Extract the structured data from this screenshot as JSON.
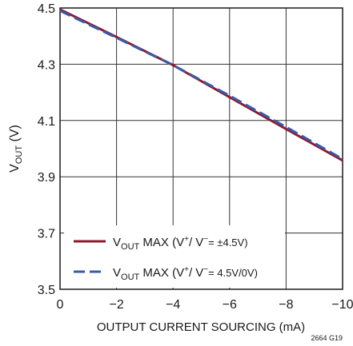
{
  "chart_data": {
    "type": "line",
    "xlabel": "OUTPUT CURRENT SOURCING (mA)",
    "ylabel_main": "V",
    "ylabel_sub": "OUT",
    "ylabel_unit": " (V)",
    "xlim": [
      0,
      -10
    ],
    "ylim": [
      3.5,
      4.5
    ],
    "x_ticks": [
      0,
      -2,
      -4,
      -6,
      -8,
      -10
    ],
    "x_tick_labels": [
      "0",
      "−2",
      "−4",
      "−6",
      "−8",
      "−10"
    ],
    "y_ticks": [
      3.5,
      3.7,
      3.9,
      4.1,
      4.3,
      4.5
    ],
    "y_tick_labels": [
      "3.5",
      "3.7",
      "3.9",
      "4.1",
      "4.3",
      "4.5"
    ],
    "grid": true,
    "legend_position": "bottom-left",
    "figure_id": "2664 G19",
    "series": [
      {
        "name": "V_OUT MAX (V+/ V− = ±4.5V)",
        "legend_main": "V",
        "legend_sub": "OUT",
        "legend_pre": " MAX (V",
        "legend_sup1": "+",
        "legend_mid": "/ V",
        "legend_sup2": "−",
        "legend_post": "= ±4.5V)",
        "style": "solid",
        "color": "#8b1a2e",
        "x": [
          0,
          -2,
          -4,
          -6,
          -8,
          -10
        ],
        "y": [
          4.495,
          4.397,
          4.297,
          4.183,
          4.07,
          3.958
        ]
      },
      {
        "name": "V_OUT MAX (V+/ V− = 4.5V/0V)",
        "legend_main": "V",
        "legend_sub": "OUT",
        "legend_pre": " MAX (V",
        "legend_sup1": "+",
        "legend_mid": "/ V",
        "legend_sup2": "−",
        "legend_post": "= 4.5V/0V)",
        "style": "dashed",
        "color": "#3a5aa8",
        "x": [
          0,
          -2,
          -4,
          -6,
          -8,
          -10
        ],
        "y": [
          4.49,
          4.394,
          4.297,
          4.188,
          4.077,
          3.963
        ]
      }
    ]
  }
}
